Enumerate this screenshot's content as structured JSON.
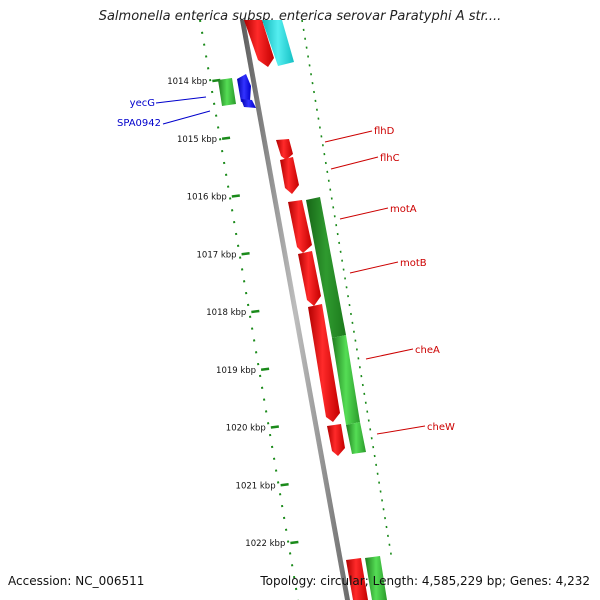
{
  "title": "Salmonella enterica subsp. enterica serovar Paratyphi A str....",
  "footer": {
    "accession_label": "Accession:",
    "accession": "NC_006511",
    "topology_label": "Topology:",
    "topology": "circular",
    "length_label": "Length:",
    "length": "4,585,229 bp",
    "genes_label": "Genes:",
    "genes": "4,232"
  },
  "colors": {
    "forward_red": "#ee1111",
    "reverse_green": "#2aaa2a",
    "dark_green": "#1f7a1f",
    "cyan": "#22d3d8",
    "blue": "#1111dd",
    "label_red": "#cc0000",
    "label_blue": "#0000cc",
    "backbone": "#8a8a8a",
    "scale_tick": "#1a8a1a"
  },
  "scale": {
    "unit": "kbp",
    "ticks": [
      "1014 kbp",
      "1015 kbp",
      "1016 kbp",
      "1017 kbp",
      "1018 kbp",
      "1019 kbp",
      "1020 kbp",
      "1021 kbp",
      "1022 kbp"
    ]
  },
  "genes": [
    {
      "name": "yecG",
      "color": "blue"
    },
    {
      "name": "SPA0942",
      "color": "blue"
    },
    {
      "name": "flhD",
      "color": "red"
    },
    {
      "name": "flhC",
      "color": "red"
    },
    {
      "name": "motA",
      "color": "red"
    },
    {
      "name": "motB",
      "color": "red"
    },
    {
      "name": "cheA",
      "color": "red"
    },
    {
      "name": "cheW",
      "color": "red"
    }
  ]
}
